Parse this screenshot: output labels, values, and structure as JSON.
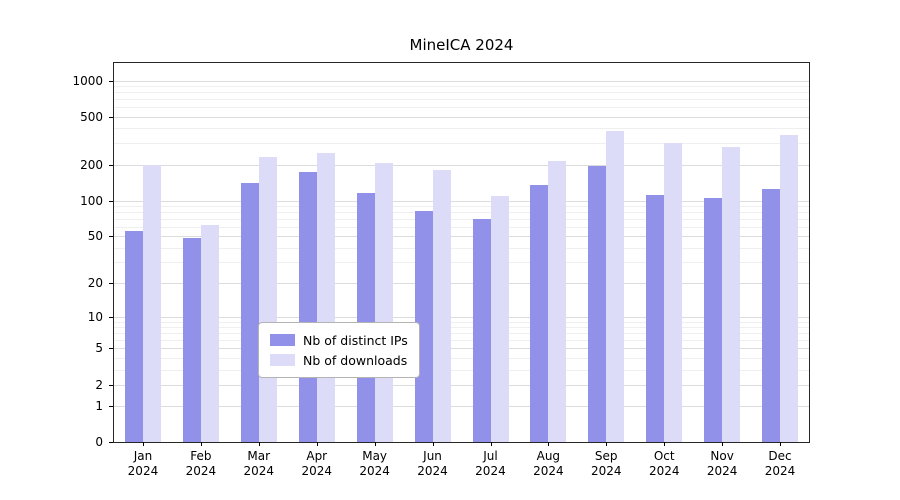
{
  "title": "MineICA 2024",
  "chart_data": {
    "type": "bar",
    "title": "MineICA 2024",
    "months": [
      "Jan",
      "Feb",
      "Mar",
      "Apr",
      "May",
      "Jun",
      "Jul",
      "Aug",
      "Sep",
      "Oct",
      "Nov",
      "Dec"
    ],
    "year": "2024",
    "series": [
      {
        "name": "Nb of distinct IPs",
        "color": "#9191e9",
        "values": [
          55,
          48,
          140,
          175,
          115,
          82,
          70,
          135,
          195,
          112,
          105,
          125
        ]
      },
      {
        "name": "Nb of downloads",
        "color": "#dcdcf8",
        "values": [
          200,
          62,
          230,
          250,
          205,
          180,
          110,
          215,
          380,
          300,
          280,
          350
        ]
      }
    ],
    "y_scale": "log10(v+1)",
    "y_ticks": [
      0,
      1,
      2,
      5,
      10,
      20,
      50,
      100,
      200,
      500,
      1000
    ],
    "y_minor_ticks": [
      3,
      4,
      6,
      7,
      8,
      9,
      30,
      40,
      60,
      70,
      80,
      90,
      300,
      400,
      600,
      700,
      800,
      900
    ],
    "ylim_top": 1400,
    "grid": true,
    "legend_position": "bottom-center"
  }
}
